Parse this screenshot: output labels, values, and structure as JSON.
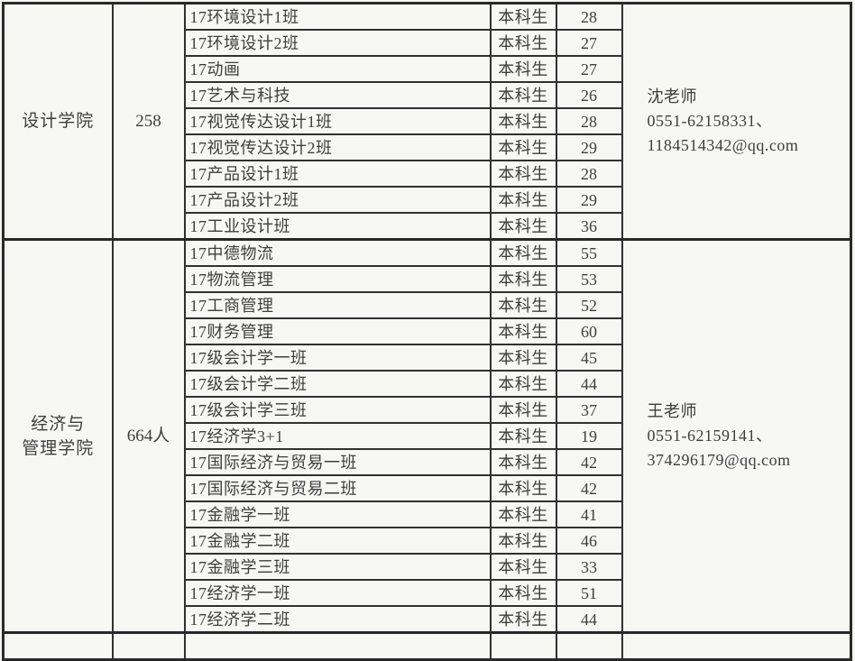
{
  "page": {
    "background": "#f5f5f2",
    "border_color": "#2a2a2a",
    "text_color": "#3e3e3e"
  },
  "table": {
    "sections": [
      {
        "college_lines": [
          "设计学院"
        ],
        "total": "258",
        "contact_lines": [
          "沈老师",
          "0551-62158331、",
          "1184514342@qq.com"
        ],
        "rows": [
          {
            "class": "17环境设计1班",
            "type": "本科生",
            "count": "28"
          },
          {
            "class": "17环境设计2班",
            "type": "本科生",
            "count": "27"
          },
          {
            "class": "17动画",
            "type": "本科生",
            "count": "27"
          },
          {
            "class": "17艺术与科技",
            "type": "本科生",
            "count": "26"
          },
          {
            "class": "17视觉传达设计1班",
            "type": "本科生",
            "count": "28"
          },
          {
            "class": "17视觉传达设计2班",
            "type": "本科生",
            "count": "29"
          },
          {
            "class": "17产品设计1班",
            "type": "本科生",
            "count": "28"
          },
          {
            "class": "17产品设计2班",
            "type": "本科生",
            "count": "29"
          },
          {
            "class": "17工业设计班",
            "type": "本科生",
            "count": "36"
          }
        ]
      },
      {
        "college_lines": [
          "经济与",
          "管理学院"
        ],
        "total": "664人",
        "contact_lines": [
          "王老师",
          "0551-62159141、",
          "374296179@qq.com"
        ],
        "rows": [
          {
            "class": "17中德物流",
            "type": "本科生",
            "count": "55"
          },
          {
            "class": "17物流管理",
            "type": "本科生",
            "count": "53"
          },
          {
            "class": "17工商管理",
            "type": "本科生",
            "count": "52"
          },
          {
            "class": "17财务管理",
            "type": "本科生",
            "count": "60"
          },
          {
            "class": "17级会计学一班",
            "type": "本科生",
            "count": "45"
          },
          {
            "class": "17级会计学二班",
            "type": "本科生",
            "count": "44"
          },
          {
            "class": "17级会计学三班",
            "type": "本科生",
            "count": "37"
          },
          {
            "class": "17经济学3+1",
            "type": "本科生",
            "count": "19"
          },
          {
            "class": "17国际经济与贸易一班",
            "type": "本科生",
            "count": "42"
          },
          {
            "class": "17国际经济与贸易二班",
            "type": "本科生",
            "count": "42"
          },
          {
            "class": "17金融学一班",
            "type": "本科生",
            "count": "41"
          },
          {
            "class": "17金融学二班",
            "type": "本科生",
            "count": "46"
          },
          {
            "class": "17金融学三班",
            "type": "本科生",
            "count": "33"
          },
          {
            "class": "17经济学一班",
            "type": "本科生",
            "count": "51"
          },
          {
            "class": "17经济学二班",
            "type": "本科生",
            "count": "44"
          }
        ]
      },
      {
        "college_lines": [],
        "total": "",
        "contact_lines": [],
        "rows": [
          {
            "class": "",
            "type": "",
            "count": ""
          }
        ]
      }
    ]
  }
}
